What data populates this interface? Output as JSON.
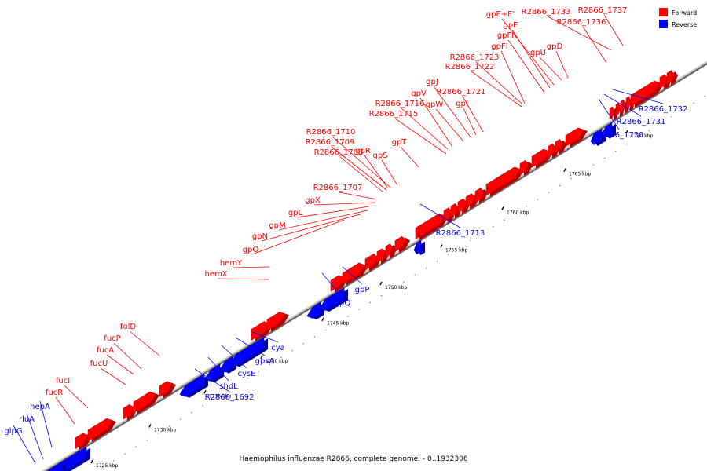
{
  "caption": "Haemophilus influenzae R2866, complete genome. - 0..1932306",
  "legend": [
    {
      "label": "Forward",
      "color": "#ff0000"
    },
    {
      "label": "Reverse",
      "color": "#0000ff"
    }
  ],
  "colors": {
    "forward": "#ff0000",
    "reverse": "#0000ff",
    "backbone": "#8c8c8c"
  },
  "ticks": [
    "1725 kbp",
    "1730 kbp",
    "1735 kbp",
    "1740 kbp",
    "1745 kbp",
    "1750 kbp",
    "1755 kbp",
    "1760 kbp",
    "1765 kbp",
    "1770 kbp"
  ],
  "forward_labels": [
    "fucR",
    "fucI",
    "fucU",
    "fucA",
    "fucP",
    "folD",
    "hemX",
    "hemY",
    "gpO",
    "gpN",
    "gpM",
    "gpL",
    "gpX",
    "R2866_1707",
    "R2866_1708",
    "R2866_1709",
    "R2866_1710",
    "gpR",
    "gpS",
    "gpT",
    "R2866_1715",
    "R2866_1716",
    "gpV",
    "gpW",
    "gpJ",
    "R2866_1721",
    "gpI",
    "R2866_1722",
    "R2866_1723",
    "gpFI",
    "gpFII",
    "gpE",
    "gpE+E'",
    "R2866_1733",
    "gpU",
    "gpD",
    "R2866_1736",
    "R2866_1737"
  ],
  "reverse_labels": [
    "glpG",
    "rluA",
    "hepA",
    "R2866_1692",
    "shdL",
    "cysE",
    "gpsA",
    "cya",
    "gpQ",
    "gpP",
    "R2866_1713",
    "R2866_1730",
    "R2866_1731",
    "R2866_1732"
  ]
}
